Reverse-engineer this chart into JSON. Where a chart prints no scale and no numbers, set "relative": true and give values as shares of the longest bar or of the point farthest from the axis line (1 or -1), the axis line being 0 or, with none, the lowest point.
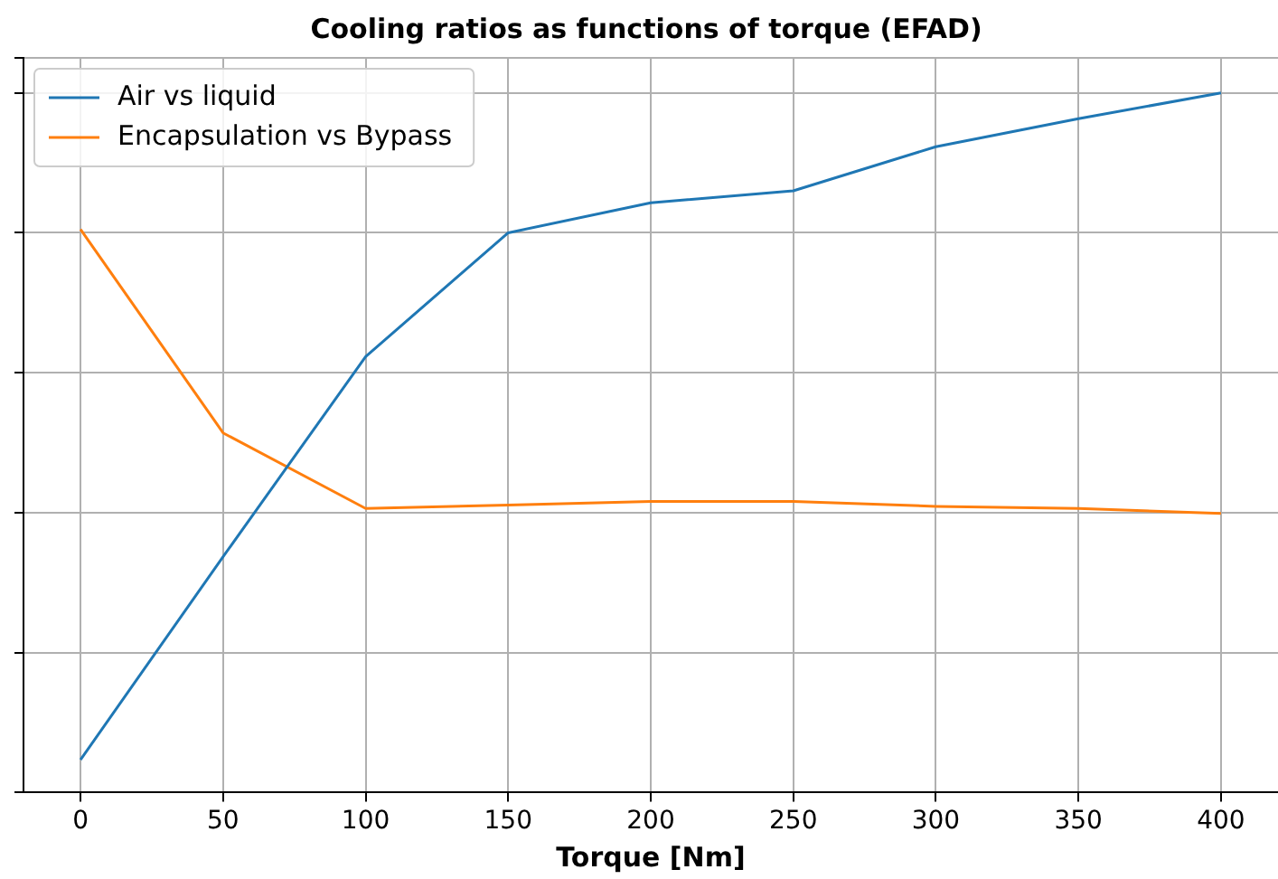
{
  "chart_data": {
    "type": "line",
    "title": "Cooling ratios as functions of torque (EFAD)",
    "xlabel": "Torque [Nm]",
    "relative": true,
    "x": [
      0,
      50,
      100,
      150,
      200,
      250,
      300,
      350,
      400
    ],
    "xlim": [
      -20,
      420
    ],
    "xticks": [
      0,
      50,
      100,
      150,
      200,
      250,
      300,
      350,
      400
    ],
    "series": [
      {
        "name": "Air vs liquid",
        "color": "#1f77b4",
        "values": [
          0.047,
          0.337,
          0.623,
          0.8,
          0.843,
          0.86,
          0.923,
          0.963,
          1
        ]
      },
      {
        "name": "Encapsulation vs Bypass",
        "color": "#ff7f0e",
        "values": [
          0.805,
          0.514,
          0.406,
          0.411,
          0.416,
          0.416,
          0.409,
          0.406,
          0.399
        ]
      }
    ],
    "grid": true,
    "legend": "top left",
    "marker": "none",
    "line_style": "solid"
  }
}
